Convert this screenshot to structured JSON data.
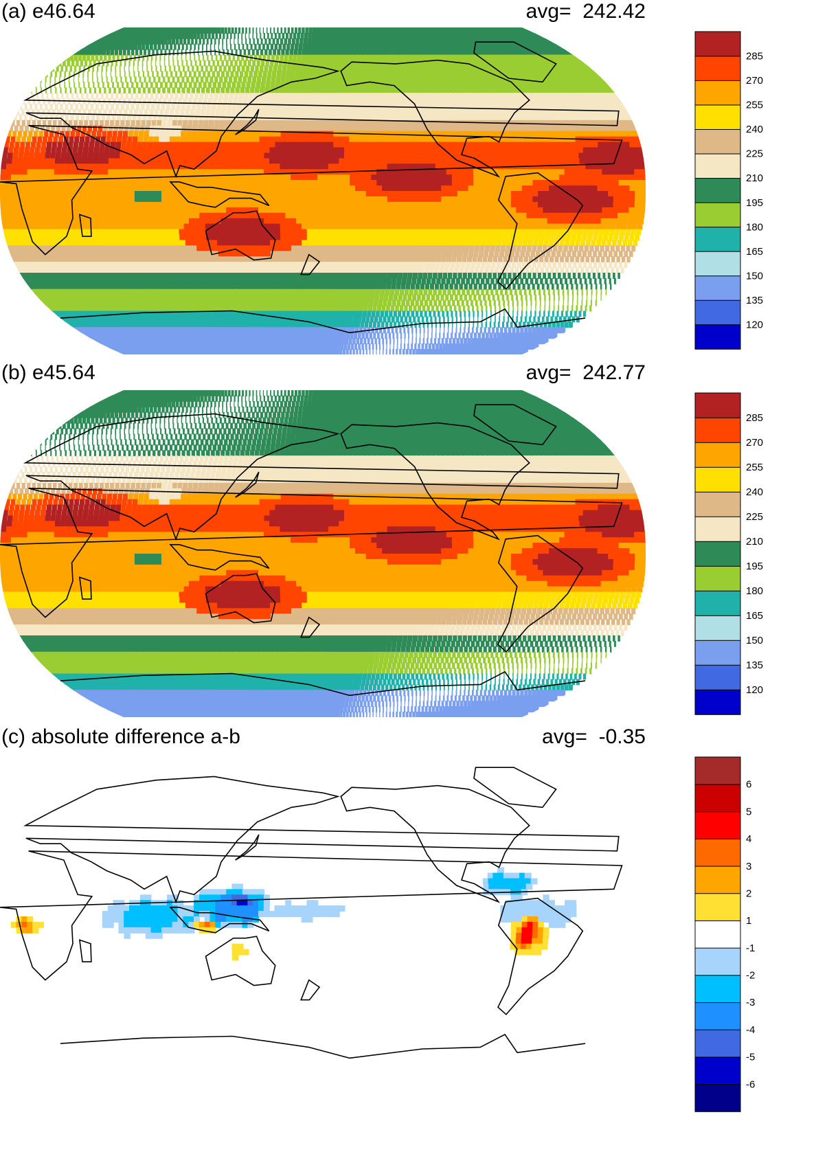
{
  "panels": [
    {
      "id": "a",
      "title": "(a) e46.64",
      "avg_label": "avg=",
      "avg_value": "242.42",
      "colorbar": {
        "colors": [
          "#0000cd",
          "#4169e1",
          "#7b9fef",
          "#b0e0e6",
          "#20b2aa",
          "#9acd32",
          "#2e8b57",
          "#f5e6c4",
          "#deb887",
          "#ffe000",
          "#ffa500",
          "#ff4500",
          "#b22222"
        ],
        "labels": [
          "120",
          "135",
          "150",
          "165",
          "180",
          "195",
          "210",
          "225",
          "240",
          "255",
          "270",
          "285"
        ]
      }
    },
    {
      "id": "b",
      "title": "(b) e45.64",
      "avg_label": "avg=",
      "avg_value": "242.77",
      "colorbar": {
        "colors": [
          "#0000cd",
          "#4169e1",
          "#7b9fef",
          "#b0e0e6",
          "#20b2aa",
          "#9acd32",
          "#2e8b57",
          "#f5e6c4",
          "#deb887",
          "#ffe000",
          "#ffa500",
          "#ff4500",
          "#b22222"
        ],
        "labels": [
          "120",
          "135",
          "150",
          "165",
          "180",
          "195",
          "210",
          "225",
          "240",
          "255",
          "270",
          "285"
        ]
      }
    },
    {
      "id": "c",
      "title": "(c) absolute difference a-b",
      "avg_label": "avg=",
      "avg_value": "-0.35",
      "colorbar": {
        "colors": [
          "#00008b",
          "#0000cd",
          "#4169e1",
          "#1e90ff",
          "#00bfff",
          "#a6d4fa",
          "#ffffff",
          "#ffe033",
          "#ffa500",
          "#ff6a00",
          "#ff0000",
          "#cc0000",
          "#a52a2a"
        ],
        "labels": [
          "-6",
          "-5",
          "-4",
          "-3",
          "-2",
          "-1",
          "1",
          "2",
          "3",
          "4",
          "5",
          "6"
        ]
      }
    }
  ],
  "chart_data": [
    {
      "type": "heatmap",
      "title": "(a) e46.64",
      "annotation": "avg=  242.42",
      "colorbar_levels": [
        120,
        135,
        150,
        165,
        180,
        195,
        210,
        225,
        240,
        255,
        270,
        285
      ],
      "zonal_bands_deg": [
        {
          "lat": [
            75,
            90
          ],
          "value": 195
        },
        {
          "lat": [
            55,
            75
          ],
          "value": 180
        },
        {
          "lat": [
            40,
            55
          ],
          "value": 210
        },
        {
          "lat": [
            32,
            40
          ],
          "value": 225
        },
        {
          "lat": [
            26,
            32
          ],
          "value": 255
        },
        {
          "lat": [
            12,
            26
          ],
          "value": 270
        },
        {
          "lat": [
            -8,
            12
          ],
          "value": 260
        },
        {
          "lat": [
            -22,
            -8
          ],
          "value": 255
        },
        {
          "lat": [
            -30,
            -22
          ],
          "value": 240
        },
        {
          "lat": [
            -38,
            -30
          ],
          "value": 225
        },
        {
          "lat": [
            -45,
            -38
          ],
          "value": 210
        },
        {
          "lat": [
            -55,
            -45
          ],
          "value": 195
        },
        {
          "lat": [
            -65,
            -55
          ],
          "value": 180
        },
        {
          "lat": [
            -75,
            -65
          ],
          "value": 165
        },
        {
          "lat": [
            -90,
            -75
          ],
          "value": 135
        }
      ],
      "hotspots_lon_lat": [
        {
          "lon": 45,
          "lat": 22,
          "value": 290
        },
        {
          "lon": 230,
          "lat": 7,
          "value": 290
        },
        {
          "lon": 170,
          "lat": 20,
          "value": 290
        },
        {
          "lon": 135,
          "lat": -23,
          "value": 290
        },
        {
          "lon": 320,
          "lat": -5,
          "value": 290
        },
        {
          "lon": 345,
          "lat": 18,
          "value": 290
        }
      ]
    },
    {
      "type": "heatmap",
      "title": "(b) e45.64",
      "annotation": "avg=  242.77",
      "colorbar_levels": [
        120,
        135,
        150,
        165,
        180,
        195,
        210,
        225,
        240,
        255,
        270,
        285
      ],
      "zonal_bands_deg": [
        {
          "lat": [
            75,
            90
          ],
          "value": 195
        },
        {
          "lat": [
            55,
            75
          ],
          "value": 195
        },
        {
          "lat": [
            40,
            55
          ],
          "value": 210
        },
        {
          "lat": [
            32,
            40
          ],
          "value": 225
        },
        {
          "lat": [
            26,
            32
          ],
          "value": 255
        },
        {
          "lat": [
            12,
            26
          ],
          "value": 270
        },
        {
          "lat": [
            -8,
            12
          ],
          "value": 265
        },
        {
          "lat": [
            -22,
            -8
          ],
          "value": 255
        },
        {
          "lat": [
            -30,
            -22
          ],
          "value": 240
        },
        {
          "lat": [
            -38,
            -30
          ],
          "value": 225
        },
        {
          "lat": [
            -45,
            -38
          ],
          "value": 210
        },
        {
          "lat": [
            -55,
            -45
          ],
          "value": 195
        },
        {
          "lat": [
            -65,
            -55
          ],
          "value": 180
        },
        {
          "lat": [
            -75,
            -65
          ],
          "value": 165
        },
        {
          "lat": [
            -90,
            -75
          ],
          "value": 135
        }
      ],
      "hotspots_lon_lat": [
        {
          "lon": 45,
          "lat": 22,
          "value": 290
        },
        {
          "lon": 230,
          "lat": 7,
          "value": 290
        },
        {
          "lon": 170,
          "lat": 20,
          "value": 290
        },
        {
          "lon": 135,
          "lat": -23,
          "value": 290
        },
        {
          "lon": 320,
          "lat": -5,
          "value": 290
        },
        {
          "lon": 345,
          "lat": 18,
          "value": 290
        }
      ]
    },
    {
      "type": "heatmap",
      "title": "(c) absolute difference a-b",
      "annotation": "avg=  -0.35",
      "colorbar_levels": [
        -6,
        -5,
        -4,
        -3,
        -2,
        -1,
        1,
        2,
        3,
        4,
        5,
        6
      ],
      "anomalies_lon_lat": [
        {
          "lon": 85,
          "lat": 0,
          "value": -3,
          "rx": 30,
          "ry": 12
        },
        {
          "lon": 130,
          "lat": 5,
          "value": -4,
          "rx": 25,
          "ry": 12
        },
        {
          "lon": 135,
          "lat": 8,
          "value": -6,
          "rx": 8,
          "ry": 6
        },
        {
          "lon": 170,
          "lat": 3,
          "value": -2,
          "rx": 25,
          "ry": 6
        },
        {
          "lon": 285,
          "lat": 18,
          "value": -3,
          "rx": 18,
          "ry": 8
        },
        {
          "lon": 300,
          "lat": 2,
          "value": -2,
          "rx": 30,
          "ry": 10
        },
        {
          "lon": 295,
          "lat": -10,
          "value": 4,
          "rx": 12,
          "ry": 12
        },
        {
          "lon": 15,
          "lat": -5,
          "value": 3,
          "rx": 8,
          "ry": 6
        },
        {
          "lon": 115,
          "lat": -5,
          "value": 3,
          "rx": 8,
          "ry": 4
        },
        {
          "lon": 135,
          "lat": -20,
          "value": 1,
          "rx": 15,
          "ry": 10
        }
      ]
    }
  ]
}
